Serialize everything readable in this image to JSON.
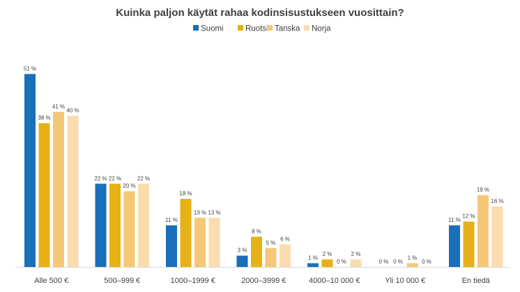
{
  "chart_data": {
    "type": "bar",
    "title": "Kuinka paljon käytät rahaa kodinsisustukseen vuosittain?",
    "categories": [
      "Alle 500 €",
      "500–999 €",
      "1000–1999 €",
      "2000–3999 €",
      "4000–10 000 €",
      "Yli 10 000 €",
      "En tiedä"
    ],
    "series": [
      {
        "name": "Suomi",
        "color": "#1a6fba",
        "values": [
          51,
          22,
          11,
          3,
          1,
          0,
          11
        ],
        "labels": [
          "51 %",
          "22 %",
          "11 %",
          "3 %",
          "1 %",
          "0 %",
          "11 %"
        ]
      },
      {
        "name": "Ruotsi",
        "color": "#e6b117",
        "values": [
          38,
          22,
          18,
          8,
          2,
          0,
          12
        ],
        "labels": [
          "38 %",
          "22 %",
          "18 %",
          "8 %",
          "2 %",
          "0 %",
          "12 %"
        ]
      },
      {
        "name": "Tanska",
        "color": "#f5c878",
        "values": [
          41,
          20,
          13,
          5,
          0,
          1,
          19
        ],
        "labels": [
          "41 %",
          "20 %",
          "13 %",
          "5 %",
          "0 %",
          "1 %",
          "19 %"
        ]
      },
      {
        "name": "Norja",
        "color": "#fbdcae",
        "values": [
          40,
          22,
          13,
          6,
          2,
          0,
          16
        ],
        "labels": [
          "40 %",
          "22 %",
          "13 %",
          "6 %",
          "2 %",
          "0 %",
          "16 %"
        ]
      }
    ],
    "ylim": [
      0,
      52
    ],
    "grid": false,
    "legend_position": "top-center",
    "xlabel": "",
    "ylabel": ""
  }
}
